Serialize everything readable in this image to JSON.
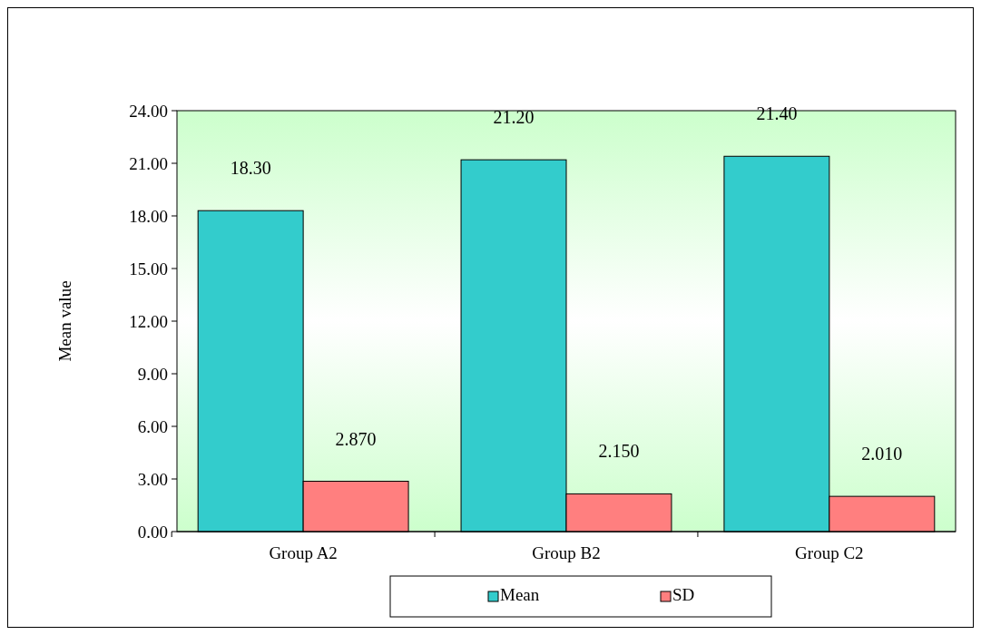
{
  "chart_data": {
    "type": "bar",
    "ylabel": "Mean value",
    "categories": [
      "Group A2",
      "Group B2",
      "Group C2"
    ],
    "series": [
      {
        "name": "Mean",
        "color": "#33cccc",
        "values": [
          18.3,
          21.2,
          21.4
        ],
        "value_labels": [
          "18.30",
          "21.20",
          "21.40"
        ]
      },
      {
        "name": "SD",
        "color": "#ff7f7f",
        "values": [
          2.87,
          2.15,
          2.01
        ],
        "value_labels": [
          "2.870",
          "2.150",
          "2.010"
        ]
      }
    ],
    "ylim": [
      0,
      24
    ],
    "yticks": [
      {
        "value": 0,
        "label": "0.00"
      },
      {
        "value": 3,
        "label": "3.00"
      },
      {
        "value": 6,
        "label": "6.00"
      },
      {
        "value": 9,
        "label": "9.00"
      },
      {
        "value": 12,
        "label": "12.00"
      },
      {
        "value": 15,
        "label": "15.00"
      },
      {
        "value": 18,
        "label": "18.00"
      },
      {
        "value": 21,
        "label": "21.00"
      },
      {
        "value": 24,
        "label": "24.00"
      }
    ],
    "legend": "bottom",
    "grid": false
  }
}
